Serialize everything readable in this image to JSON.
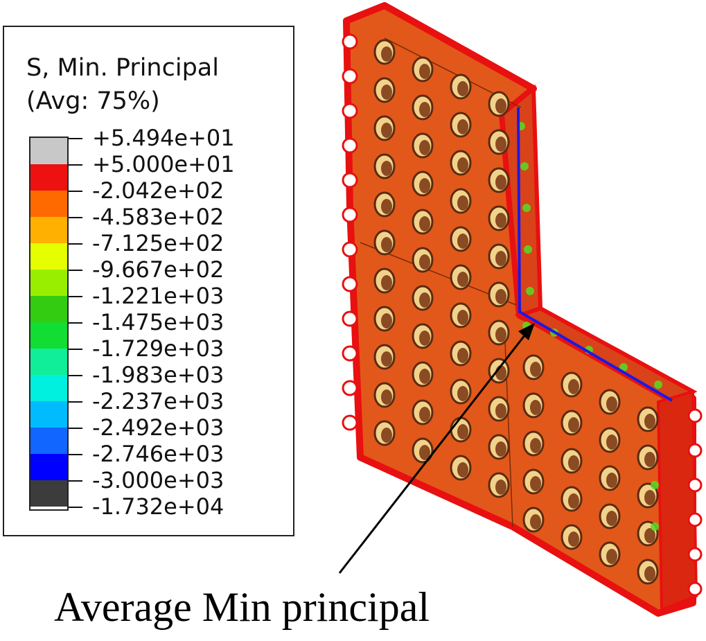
{
  "legend": {
    "title_line1": "S, Min. Principal",
    "title_line2": "(Avg: 75%)",
    "colors": [
      "#c8c8c8",
      "#ee1111",
      "#ff6a00",
      "#ffb000",
      "#e6ff00",
      "#99ee00",
      "#33cc11",
      "#11dd33",
      "#11ee99",
      "#00f0e0",
      "#00bbff",
      "#1166ff",
      "#0000ff",
      "#3c3c3c"
    ],
    "labels": [
      "+5.494e+01",
      "+5.000e+01",
      "-2.042e+02",
      "-4.583e+02",
      "-7.125e+02",
      "-9.667e+02",
      "-1.221e+03",
      "-1.475e+03",
      "-1.729e+03",
      "-1.983e+03",
      "-2.237e+03",
      "-2.492e+03",
      "-2.746e+03",
      "-3.000e+03",
      "-1.732e+04"
    ]
  },
  "annotation": {
    "label": "Average Min principal"
  },
  "model": {
    "face_color": "#e2581a",
    "edge_color": "#e81010",
    "path_color": "#1a1ae6"
  }
}
